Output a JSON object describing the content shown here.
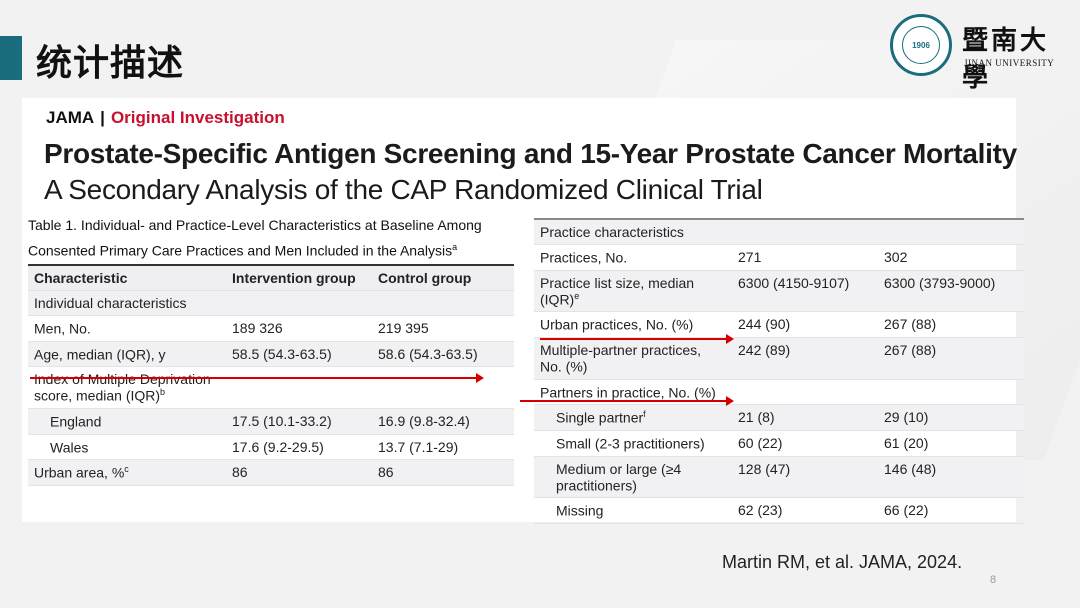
{
  "slide": {
    "title": "统计描述",
    "page_number": "8",
    "citation": "Martin RM, et al. JAMA, 2024."
  },
  "logo": {
    "cn": "暨南大學",
    "en": "JINAN UNIVERSITY",
    "seal_text": "1906"
  },
  "article": {
    "journal": "JAMA",
    "separator": "|",
    "section": "Original Investigation",
    "title": "Prostate-Specific Antigen Screening and 15-Year Prostate Cancer Mortality",
    "subtitle": "A Secondary Analysis of the CAP Randomized Clinical Trial"
  },
  "table1": {
    "caption": "Table 1. Individual- and Practice-Level Characteristics at Baseline Among Consented Primary Care Practices and Men Included in the Analysis",
    "caption_sup": "a",
    "headers": [
      "Characteristic",
      "Intervention group",
      "Control group"
    ],
    "section": "Individual characteristics",
    "rows": [
      {
        "label": "Men, No.",
        "sup": "",
        "intervention": "189 326",
        "control": "219 395",
        "indent": false
      },
      {
        "label": "Age, median (IQR), y",
        "sup": "",
        "intervention": "58.5 (54.3-63.5)",
        "control": "58.6 (54.3-63.5)",
        "indent": false
      },
      {
        "label": "Index of Multiple Deprivation score, median (IQR)",
        "sup": "b",
        "intervention": "",
        "control": "",
        "indent": false
      },
      {
        "label": "England",
        "sup": "",
        "intervention": "17.5 (10.1-33.2)",
        "control": "16.9 (9.8-32.4)",
        "indent": true
      },
      {
        "label": "Wales",
        "sup": "",
        "intervention": "17.6 (9.2-29.5)",
        "control": "13.7 (7.1-29)",
        "indent": true
      },
      {
        "label": "Urban area, %",
        "sup": "c",
        "intervention": "86",
        "control": "86",
        "indent": false
      }
    ]
  },
  "table2": {
    "section": "Practice characteristics",
    "rows": [
      {
        "label": "Practices, No.",
        "sup": "",
        "intervention": "271",
        "control": "302",
        "indent": false
      },
      {
        "label": "Practice list size, median (IQR)",
        "sup": "e",
        "intervention": "6300 (4150-9107)",
        "control": "6300 (3793-9000)",
        "indent": false
      },
      {
        "label": "Urban practices, No. (%)",
        "sup": "",
        "intervention": "244 (90)",
        "control": "267 (88)",
        "indent": false
      },
      {
        "label": "Multiple-partner practices, No. (%)",
        "sup": "",
        "intervention": "242 (89)",
        "control": "267 (88)",
        "indent": false
      },
      {
        "label": "Partners in practice, No. (%)",
        "sup": "",
        "intervention": "",
        "control": "",
        "indent": false
      },
      {
        "label": "Single partner",
        "sup": "f",
        "intervention": "21 (8)",
        "control": "29 (10)",
        "indent": true
      },
      {
        "label": "Small (2-3 practitioners)",
        "sup": "",
        "intervention": "60 (22)",
        "control": "61 (20)",
        "indent": true
      },
      {
        "label": "Medium or large (≥4 practitioners)",
        "sup": "",
        "intervention": "128 (47)",
        "control": "146 (48)",
        "indent": true
      },
      {
        "label": "Missing",
        "sup": "",
        "intervention": "62 (23)",
        "control": "66 (22)",
        "indent": true
      }
    ]
  },
  "colors": {
    "accent": "#1a6d7d",
    "journal_red": "#c8102e",
    "arrow_red": "#d40000"
  }
}
